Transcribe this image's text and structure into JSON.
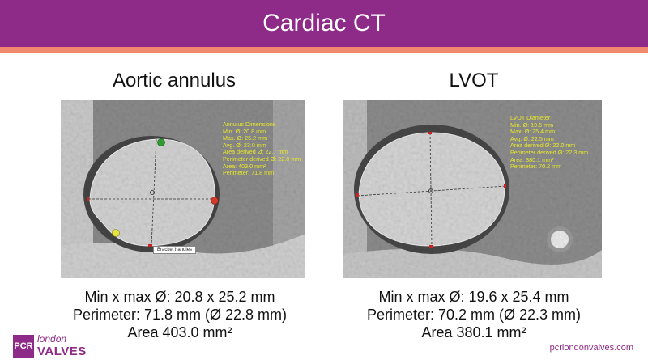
{
  "header": {
    "title": "Cardiac CT"
  },
  "left_panel": {
    "title": "Aortic annulus",
    "overlay": [
      "Annulus Dimensions",
      "Min. Ø: 20.8 mm",
      "Max. Ø: 25.2 mm",
      "Avg. Ø: 23.0 mm",
      "Area derived Ø: 22.7 mm",
      "Perimeter derived Ø: 22.8 mm",
      "Area: 403.0 mm²",
      "Perimeter: 71.8 mm"
    ],
    "tooltip": "Bracket handles",
    "stats": [
      "Min x max Ø: 20.8 x 25.2 mm",
      "Perimeter: 71.8 mm (Ø 22.8 mm)",
      "Area 403.0 mm²"
    ]
  },
  "right_panel": {
    "title": "LVOT",
    "overlay": [
      "LVOT Diameter",
      "Min. Ø: 19.6 mm",
      "Max. Ø: 25.4 mm",
      "Avg. Ø: 22.5 mm",
      "Area derived Ø: 22.0 mm",
      "Perimeter derived Ø: 22.3 mm",
      "Area: 380.1 mm²",
      "Perimeter: 70.2 mm"
    ],
    "stats": [
      "Min x max Ø: 19.6 x 25.4 mm",
      "Perimeter: 70.2 mm (Ø 22.3 mm)",
      "Area 380.1 mm²"
    ]
  },
  "footer": {
    "logo_mark": "PCR",
    "logo_top": "london",
    "logo_bottom": "VALVES",
    "website": "pcrlondonvalves.com"
  },
  "colors": {
    "brand": "#8e2a87",
    "stripe": "#f0896f",
    "overlay_text": "#e8e82a"
  }
}
